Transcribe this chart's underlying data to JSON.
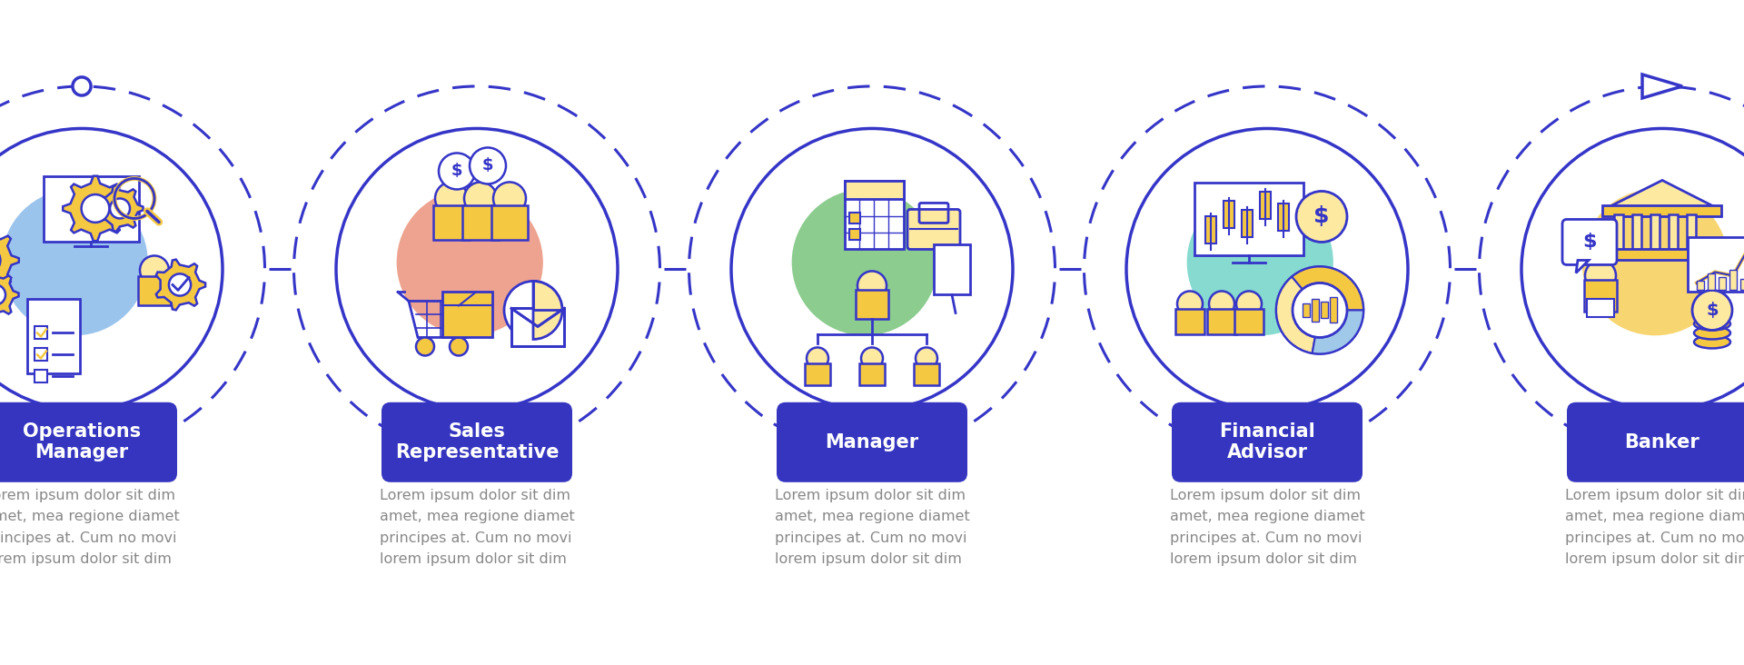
{
  "bg_color": "#ffffff",
  "outline_color": "#3535c8",
  "dash_color": "#3535c8",
  "blob_colors": [
    "#7ab0e8",
    "#e8856a",
    "#66bb6a",
    "#5ecec0",
    "#f5c842"
  ],
  "icon_fill": "#f5c842",
  "icon_fill_light": "#fde9a0",
  "icon_line": "#3535c8",
  "button_color": "#3535c0",
  "button_text_color": "#ffffff",
  "body_text_color": "#888888",
  "titles": [
    "Operations\nManager",
    "Sales\nRepresentative",
    "Manager",
    "Financial\nAdvisor",
    "Banker"
  ],
  "lorem": "Lorem ipsum dolor sit dim\namet, mea regione diamet\nprincipes at. Cum no movi\nlorem ipsum dolor sit dim",
  "n": 5
}
